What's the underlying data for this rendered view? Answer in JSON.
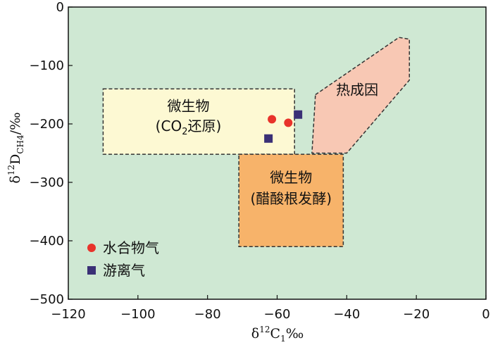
{
  "chart_data": {
    "type": "scatter",
    "xlabel_parts": {
      "delta": "δ",
      "sup": "12",
      "main": "C",
      "sub": "1",
      "unit": "‰"
    },
    "ylabel_parts": {
      "delta": "δ",
      "sup": "12",
      "main": "D",
      "sub": "CH4",
      "unit": "/‰"
    },
    "xlim": [
      -120,
      0
    ],
    "ylim": [
      -500,
      0
    ],
    "xticks": [
      -120,
      -100,
      -80,
      -60,
      -40,
      -20,
      0
    ],
    "yticks": [
      0,
      -100,
      -200,
      -300,
      -400,
      -500
    ],
    "background_color": "#cfe8d3",
    "regions": [
      {
        "id": "microbial-co2-reduction",
        "line1": "微生物",
        "line2_pre": "(CO",
        "line2_sub": "2",
        "line2_post": "还原)",
        "color": "#fdf9d3",
        "polygon": [
          [
            -110,
            -140
          ],
          [
            -55,
            -140
          ],
          [
            -55,
            -252
          ],
          [
            -110,
            -252
          ]
        ]
      },
      {
        "id": "microbial-acetate-fermentation",
        "line1": "微生物",
        "line2": "(醋酸根发酵)",
        "color": "#f7b36a",
        "polygon": [
          [
            -71,
            -252
          ],
          [
            -41,
            -252
          ],
          [
            -41,
            -410
          ],
          [
            -71,
            -410
          ]
        ]
      },
      {
        "id": "thermogenic",
        "line1": "热成因",
        "color": "#f8c8b4",
        "polygon": [
          [
            -49,
            -150
          ],
          [
            -25,
            -52
          ],
          [
            -22,
            -55
          ],
          [
            -22,
            -125
          ],
          [
            -40,
            -250
          ],
          [
            -50,
            -250
          ]
        ]
      }
    ],
    "series": [
      {
        "name": "水合物气",
        "marker": "circle",
        "color": "#e8332b",
        "x": [
          -61.5,
          -56.8
        ],
        "y": [
          -192,
          -198
        ]
      },
      {
        "name": "游离气",
        "marker": "square",
        "color": "#3a3076",
        "x": [
          -54,
          -62.5
        ],
        "y": [
          -184,
          -225
        ]
      }
    ],
    "legend_position": "bottom-left"
  }
}
